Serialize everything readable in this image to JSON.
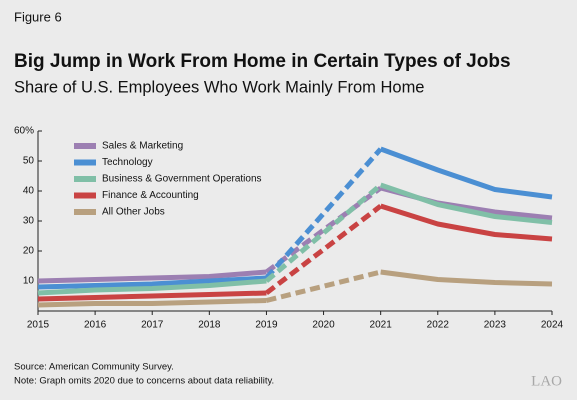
{
  "chart_data": {
    "type": "line",
    "figure_label": "Figure 6",
    "title": "Big Jump in Work From Home in Certain Types of Jobs",
    "subtitle": "Share of U.S. Employees Who Work Mainly From Home",
    "x": [
      2015,
      2016,
      2017,
      2018,
      2019,
      2020,
      2021,
      2022,
      2023,
      2024
    ],
    "series": [
      {
        "name": "Sales & Marketing",
        "color": "#9c7fb2",
        "values": [
          10,
          10.5,
          11,
          11.5,
          13,
          null,
          41,
          36,
          33,
          31
        ]
      },
      {
        "name": "Technology",
        "color": "#4b8fd3",
        "values": [
          8,
          8.5,
          9,
          10,
          11,
          null,
          54,
          47,
          40.5,
          38
        ]
      },
      {
        "name": "Business & Government Operations",
        "color": "#80bfa7",
        "values": [
          6,
          7,
          7.5,
          8.5,
          10,
          null,
          42,
          35.5,
          31.5,
          29.5
        ]
      },
      {
        "name": "Finance & Accounting",
        "color": "#c94343",
        "values": [
          4,
          4.5,
          5,
          5.5,
          6,
          null,
          35,
          29,
          25.5,
          24
        ]
      },
      {
        "name": "All Other Jobs",
        "color": "#b8a07f",
        "values": [
          2,
          2.5,
          2.5,
          3,
          3.5,
          null,
          13,
          10.5,
          9.5,
          9
        ]
      }
    ],
    "xlim": [
      2015,
      2024
    ],
    "xticks": [
      2015,
      2016,
      2017,
      2018,
      2019,
      2020,
      2021,
      2022,
      2023,
      2024
    ],
    "ylim": [
      0,
      60
    ],
    "yticks": [
      10,
      20,
      30,
      40,
      50,
      {
        "value": 60,
        "label": "60%"
      }
    ],
    "grid": false,
    "legend": "upper-left",
    "source": "Source: American Community Survey.",
    "note": "Note: Graph omits 2020 due to concerns about data reliability.",
    "logo": "LAO"
  }
}
